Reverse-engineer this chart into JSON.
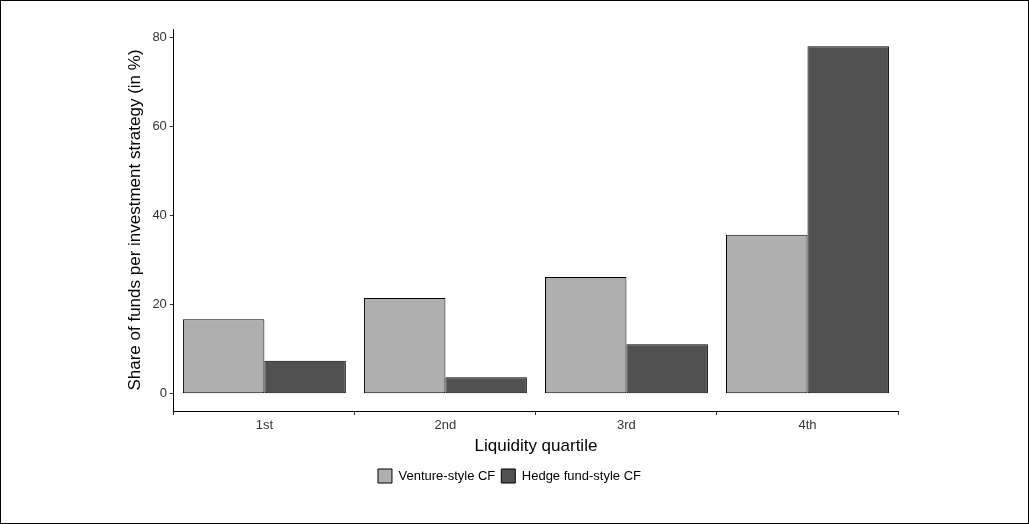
{
  "chart_data": {
    "type": "bar",
    "xlabel": "Liquidity quartile",
    "ylabel": "Share of funds per investment strategy (in %)",
    "categories": [
      "1st",
      "2nd",
      "3rd",
      "4th"
    ],
    "series": [
      {
        "name": "Venture-style CF",
        "color": "#afafaf",
        "values": [
          16.7,
          21.5,
          26.2,
          35.7
        ]
      },
      {
        "name": "Hedge fund-style CF",
        "color": "#515151",
        "values": [
          7.4,
          3.7,
          11.1,
          78.0
        ]
      }
    ],
    "ylim": [
      -3.9,
      81.9
    ],
    "yticks": [
      0,
      20,
      40,
      60,
      80
    ],
    "grid": false,
    "legend": "bottom"
  }
}
